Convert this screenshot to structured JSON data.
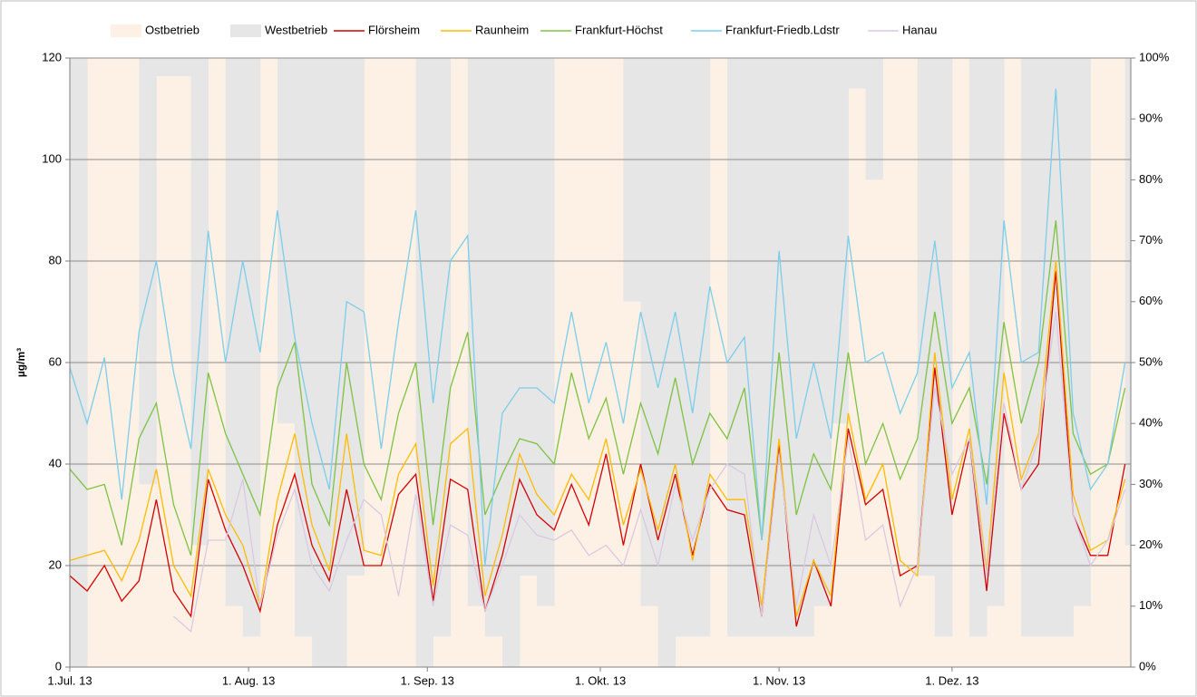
{
  "chart_data": {
    "type": "line",
    "y_label": "µg/m³",
    "x": [
      0,
      3,
      6,
      9,
      12,
      15,
      18,
      21,
      24,
      27,
      30,
      33,
      36,
      39,
      42,
      45,
      48,
      51,
      54,
      57,
      60,
      63,
      66,
      69,
      72,
      75,
      78,
      81,
      84,
      87,
      90,
      93,
      96,
      99,
      102,
      105,
      108,
      111,
      114,
      117,
      120,
      123,
      126,
      129,
      132,
      135,
      138,
      141,
      144,
      147,
      150,
      153,
      156,
      159,
      162,
      165,
      168,
      171,
      174,
      177,
      180,
      183
    ],
    "xlim": [
      0,
      184
    ],
    "xticks": [
      {
        "value": 0,
        "label": "1.Jul. 13"
      },
      {
        "value": 31,
        "label": "1. Aug. 13"
      },
      {
        "value": 62,
        "label": "1. Sep. 13"
      },
      {
        "value": 92,
        "label": "1. Okt. 13"
      },
      {
        "value": 123,
        "label": "1. Nov. 13"
      },
      {
        "value": 153,
        "label": "1. Dez. 13"
      }
    ],
    "ylim": [
      0,
      120
    ],
    "yticks": [
      0,
      20,
      40,
      60,
      80,
      100,
      120
    ],
    "y2lim": [
      0,
      100
    ],
    "y2ticks": [
      {
        "value": 0,
        "label": "0%"
      },
      {
        "value": 10,
        "label": "10%"
      },
      {
        "value": 20,
        "label": "20%"
      },
      {
        "value": 30,
        "label": "30%"
      },
      {
        "value": 40,
        "label": "40%"
      },
      {
        "value": 50,
        "label": "50%"
      },
      {
        "value": 60,
        "label": "60%"
      },
      {
        "value": 70,
        "label": "70%"
      },
      {
        "value": 80,
        "label": "80%"
      },
      {
        "value": 90,
        "label": "90%"
      },
      {
        "value": 100,
        "label": "100%"
      }
    ],
    "grid": true,
    "stacked": true,
    "legend": "top",
    "series": [
      {
        "name": "Ostbetrieb",
        "type": "bar",
        "axis": "y2",
        "color": "#fdf1e5",
        "values": [
          0,
          100,
          100,
          100,
          30,
          97,
          97,
          20,
          100,
          10,
          5,
          100,
          40,
          5,
          0,
          0,
          15,
          100,
          100,
          100,
          0,
          5,
          100,
          10,
          5,
          0,
          15,
          10,
          100,
          100,
          100,
          100,
          60,
          10,
          0,
          5,
          5,
          100,
          5,
          5,
          5,
          5,
          5,
          10,
          40,
          95,
          80,
          100,
          100,
          15,
          5,
          100,
          5,
          10,
          100,
          5,
          5,
          5,
          10,
          100,
          100,
          20
        ]
      },
      {
        "name": "Westbetrieb",
        "type": "bar",
        "axis": "y2",
        "color": "#e6e6e6",
        "values": [
          100,
          0,
          0,
          0,
          70,
          3,
          3,
          80,
          0,
          90,
          95,
          0,
          60,
          95,
          100,
          100,
          85,
          0,
          0,
          0,
          100,
          95,
          0,
          90,
          95,
          100,
          85,
          90,
          0,
          0,
          0,
          0,
          40,
          90,
          100,
          95,
          95,
          0,
          95,
          95,
          95,
          95,
          95,
          90,
          60,
          5,
          20,
          0,
          0,
          85,
          95,
          0,
          95,
          90,
          0,
          95,
          95,
          95,
          90,
          0,
          0,
          80
        ]
      },
      {
        "name": "Flörsheim",
        "type": "line",
        "color": "#d40000",
        "values": [
          18,
          15,
          20,
          13,
          17,
          33,
          15,
          10,
          37,
          27,
          20,
          11,
          28,
          38,
          24,
          17,
          35,
          20,
          20,
          34,
          38,
          13,
          37,
          35,
          11,
          22,
          37,
          30,
          27,
          36,
          28,
          42,
          24,
          40,
          25,
          38,
          22,
          36,
          31,
          30,
          10,
          44,
          8,
          21,
          12,
          47,
          32,
          35,
          18,
          20,
          59,
          30,
          45,
          15,
          50,
          35,
          40,
          78,
          30,
          22,
          22,
          40
        ]
      },
      {
        "name": "Raunheim",
        "type": "line",
        "color": "#ffbb00",
        "values": [
          21,
          22,
          23,
          17,
          25,
          39,
          20,
          14,
          39,
          30,
          24,
          12,
          33,
          46,
          28,
          19,
          46,
          23,
          22,
          38,
          44,
          16,
          44,
          47,
          14,
          26,
          42,
          34,
          30,
          38,
          33,
          45,
          28,
          39,
          27,
          40,
          21,
          38,
          33,
          33,
          12,
          45,
          10,
          21,
          14,
          50,
          33,
          40,
          21,
          18,
          62,
          33,
          47,
          19,
          58,
          37,
          46,
          80,
          34,
          23,
          25,
          37
        ]
      },
      {
        "name": "Frankfurt-Höchst",
        "type": "line",
        "color": "#7dc242",
        "values": [
          39,
          35,
          36,
          24,
          45,
          52,
          32,
          22,
          58,
          46,
          38,
          30,
          55,
          64,
          36,
          28,
          60,
          40,
          33,
          50,
          60,
          28,
          55,
          66,
          30,
          38,
          45,
          44,
          40,
          58,
          45,
          53,
          38,
          52,
          42,
          57,
          40,
          50,
          45,
          55,
          25,
          62,
          30,
          42,
          35,
          62,
          40,
          48,
          37,
          45,
          70,
          48,
          55,
          36,
          68,
          48,
          60,
          88,
          46,
          38,
          40,
          55
        ]
      },
      {
        "name": "Frankfurt-Friedb.Ldstr",
        "type": "line",
        "color": "#7ccdea",
        "values": [
          59,
          48,
          61,
          33,
          66,
          80,
          58,
          43,
          86,
          60,
          80,
          62,
          90,
          65,
          48,
          35,
          72,
          70,
          43,
          68,
          90,
          52,
          80,
          85,
          20,
          50,
          55,
          55,
          52,
          70,
          52,
          64,
          48,
          70,
          55,
          70,
          50,
          75,
          60,
          65,
          25,
          82,
          45,
          60,
          45,
          85,
          60,
          62,
          50,
          58,
          84,
          55,
          62,
          32,
          88,
          60,
          62,
          114,
          50,
          35,
          40,
          60
        ]
      },
      {
        "name": "Hanau",
        "type": "line",
        "color": "#d9c9e2",
        "values": [
          null,
          null,
          null,
          null,
          null,
          null,
          10,
          7,
          25,
          25,
          37,
          12,
          26,
          35,
          20,
          15,
          25,
          33,
          30,
          14,
          34,
          12,
          28,
          26,
          11,
          20,
          30,
          26,
          25,
          27,
          22,
          24,
          20,
          31,
          20,
          36,
          25,
          35,
          40,
          38,
          10,
          42,
          12,
          30,
          20,
          45,
          25,
          28,
          12,
          20,
          55,
          38,
          45,
          18,
          52,
          35,
          45,
          70,
          30,
          20,
          25,
          35
        ]
      }
    ]
  }
}
